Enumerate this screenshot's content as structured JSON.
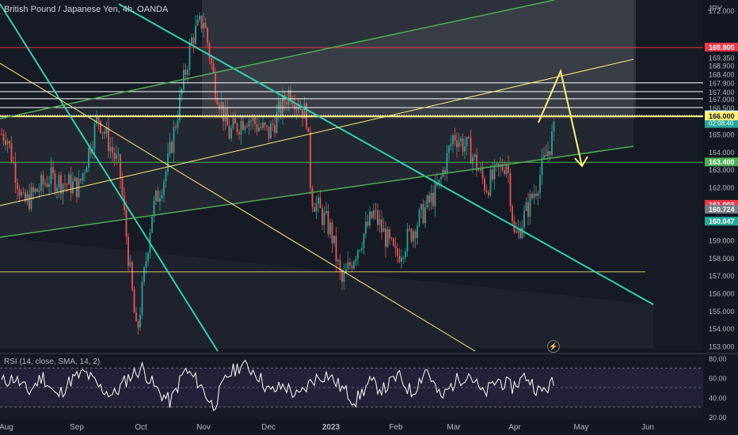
{
  "header": {
    "symbol_title": "British Pound / Japanese Yen, 4h, OANDA",
    "currency": "JPY",
    "rsi_label": "RSI (14, close, SMA, 14, 2)"
  },
  "icons": {
    "fast_forward": "lightning-icon"
  },
  "colors": {
    "background": "#131722",
    "panel": "#2a2e39",
    "up": "#26a69a",
    "down": "#ef5350",
    "channel_teal": "#2bd3b0",
    "green_line": "#4caf50",
    "yellow_line": "#fff176",
    "red_level": "#f23645",
    "white_level": "#ffffff",
    "rsi_line": "#ffffff"
  },
  "chart_data": {
    "type": "candlestick",
    "symbol": "GBPJPY",
    "timeframe": "4h",
    "x_labels": [
      "Aug",
      "Sep",
      "Oct",
      "Nov",
      "Dec",
      "2023",
      "Feb",
      "Mar",
      "Apr",
      "May",
      "Jun"
    ],
    "y_ticks": [
      "172.000",
      "169.350",
      "168.900",
      "168.400",
      "167.900",
      "167.400",
      "167.000",
      "166.500",
      "165.000",
      "164.000",
      "163.000",
      "162.000",
      "160.000",
      "159.000",
      "158.000",
      "157.000",
      "156.000",
      "155.000",
      "154.000",
      "153.000"
    ],
    "ylim": [
      152.8,
      172.5
    ],
    "price_path": [
      [
        "Aug",
        165.0
      ],
      [
        "Aug 8",
        161.0
      ],
      [
        "Aug 20",
        162.5
      ],
      [
        "Sep 1",
        162.0
      ],
      [
        "Sep 10",
        166.0
      ],
      [
        "Sep 20",
        163.0
      ],
      [
        "Sep 28",
        153.5
      ],
      [
        "Oct 5",
        160.5
      ],
      [
        "Oct 12",
        163.0
      ],
      [
        "Oct 20",
        168.0
      ],
      [
        "Oct 24",
        170.5
      ],
      [
        "Nov",
        171.5
      ],
      [
        "Nov 5",
        168.0
      ],
      [
        "Nov 12",
        165.0
      ],
      [
        "Nov 20",
        166.0
      ],
      [
        "Dec",
        165.0
      ],
      [
        "Dec 10",
        167.5
      ],
      [
        "Dec 18",
        166.0
      ],
      [
        "Dec 20",
        161.5
      ],
      [
        "2023",
        159.5
      ],
      [
        "Jan 5",
        156.5
      ],
      [
        "Jan 12",
        158.5
      ],
      [
        "Jan 20",
        160.5
      ],
      [
        "Feb",
        158.0
      ],
      [
        "Feb 10",
        160.0
      ],
      [
        "Feb 20",
        162.0
      ],
      [
        "Mar",
        165.0
      ],
      [
        "Mar 8",
        164.0
      ],
      [
        "Mar 15",
        162.0
      ],
      [
        "Mar 25",
        163.5
      ],
      [
        "Apr",
        159.0
      ],
      [
        "Apr 10",
        162.0
      ],
      [
        "Apr 18",
        165.0
      ],
      [
        "Apr 25",
        166.0
      ]
    ],
    "horizontal_levels": [
      {
        "value": 169.9,
        "label": "169.900",
        "color": "#f23645"
      },
      {
        "value": 167.9,
        "label": "167.900",
        "color": "#ffffff"
      },
      {
        "value": 167.4,
        "label": "167.400",
        "color": "#ffffff"
      },
      {
        "value": 167.0,
        "label": "167.000",
        "color": "#ffffff"
      },
      {
        "value": 166.5,
        "label": "166.500",
        "color": "#ffffff"
      },
      {
        "value": 166.0,
        "label": "166.000",
        "color": "#fff176"
      },
      {
        "value": 163.4,
        "label": "163.400",
        "color": "#4caf50"
      }
    ],
    "price_tags": [
      {
        "value": 169.9,
        "label": "169.900",
        "bg": "#f23645",
        "fg": "#ffffff"
      },
      {
        "value": 166.07,
        "label": "166.070",
        "bg": "#26a69a",
        "fg": "#ffffff",
        "sub": "02:08:46"
      },
      {
        "value": 166.058,
        "label": "166.058",
        "bg": "#ffffff",
        "fg": "#131722"
      },
      {
        "value": 166.0,
        "label": "166.000",
        "bg": "#fff176",
        "fg": "#131722"
      },
      {
        "value": 163.4,
        "label": "163.400",
        "bg": "#4caf50",
        "fg": "#ffffff"
      },
      {
        "value": 161.003,
        "label": "161.003",
        "bg": "#f23645",
        "fg": "#ffffff"
      },
      {
        "value": 160.724,
        "label": "160.724",
        "bg": "#787b86",
        "fg": "#ffffff"
      },
      {
        "value": 160.047,
        "label": "160.047",
        "bg": "#26a69a",
        "fg": "#ffffff"
      }
    ],
    "rsi": {
      "ticks": [
        "80.00",
        "60.00",
        "40.00",
        "20.00"
      ],
      "ylim": [
        20,
        80
      ],
      "bands": [
        70,
        50,
        30
      ],
      "path": [
        55,
        60,
        45,
        62,
        40,
        58,
        65,
        50,
        42,
        60,
        70,
        48,
        35,
        68,
        55,
        30,
        62,
        74,
        66,
        45,
        52,
        40,
        58,
        64,
        50,
        36,
        55,
        48,
        62,
        44,
        70,
        38,
        56,
        65,
        42,
        58,
        50,
        62,
        45,
        55
      ]
    }
  }
}
